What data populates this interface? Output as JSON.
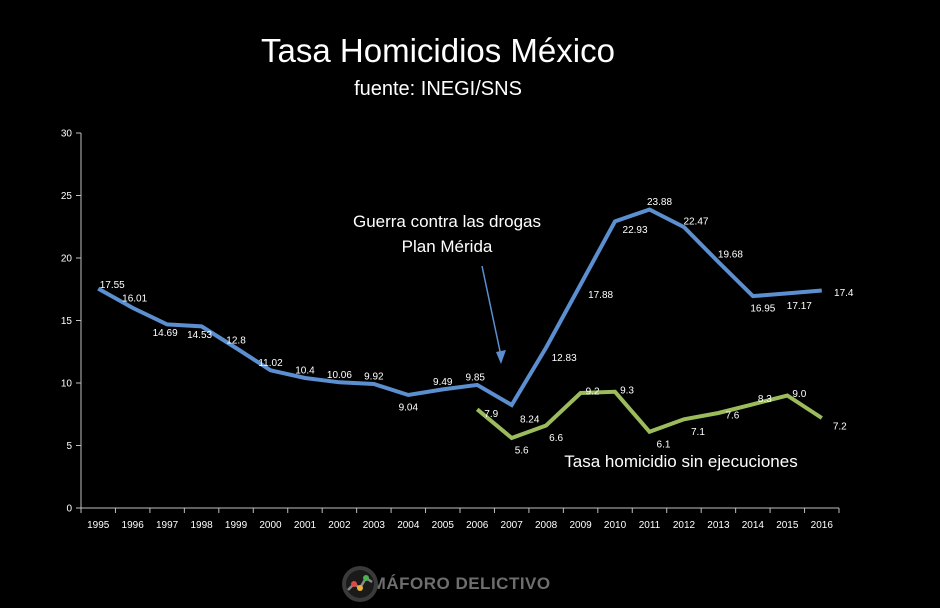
{
  "chart_data": {
    "type": "line",
    "title": "Tasa Homicidios México",
    "subtitle": "fuente: INEGI/SNS",
    "xlabel": "",
    "ylabel": "",
    "ylim": [
      0,
      30
    ],
    "yticks": [
      0,
      5,
      10,
      15,
      20,
      25,
      30
    ],
    "categories": [
      "1995",
      "1996",
      "1997",
      "1998",
      "1999",
      "2000",
      "2001",
      "2002",
      "2003",
      "2004",
      "2005",
      "2006",
      "2007",
      "2008",
      "2009",
      "2010",
      "2011",
      "2012",
      "2013",
      "2014",
      "2015",
      "2016"
    ],
    "grid": false,
    "series": [
      {
        "values": [
          17.55,
          16.01,
          14.69,
          14.53,
          12.8,
          11.02,
          10.4,
          10.06,
          9.92,
          9.04,
          9.49,
          9.85,
          8.24,
          12.83,
          17.88,
          22.93,
          23.88,
          22.47,
          19.68,
          16.95,
          17.17,
          17.4
        ],
        "labels": [
          "17.55",
          "16.01",
          "14.69",
          "14.53",
          "12.8",
          "11.02",
          "10.4",
          "10.06",
          "9.92",
          "9.04",
          "9.49",
          "9.85",
          "8.24",
          "12.83",
          "17.88",
          "22.93",
          "23.88",
          "22.47",
          "19.68",
          "16.95",
          "17.17",
          "17.4"
        ],
        "color": "#5b8fd0"
      },
      {
        "name": "Tasa homicidio sin ejecuciones",
        "values": [
          null,
          null,
          null,
          null,
          null,
          null,
          null,
          null,
          null,
          null,
          null,
          7.9,
          5.6,
          6.6,
          9.2,
          9.3,
          6.1,
          7.1,
          7.6,
          8.3,
          9.0,
          7.2
        ],
        "labels": [
          null,
          null,
          null,
          null,
          null,
          null,
          null,
          null,
          null,
          null,
          null,
          "7.9",
          "5.6",
          "6.6",
          "9.2",
          "9.3",
          "6.1",
          "7.1",
          "7.6",
          "8.3",
          "9.0",
          "7.2"
        ],
        "color": "#9cbb5c"
      }
    ],
    "annotations": [
      {
        "lines": [
          "Guerra contra las drogas",
          "Plan Mérida"
        ],
        "points_to": "2007"
      }
    ]
  },
  "logo": {
    "text": "SEMÁFORO DELICTIVO"
  }
}
